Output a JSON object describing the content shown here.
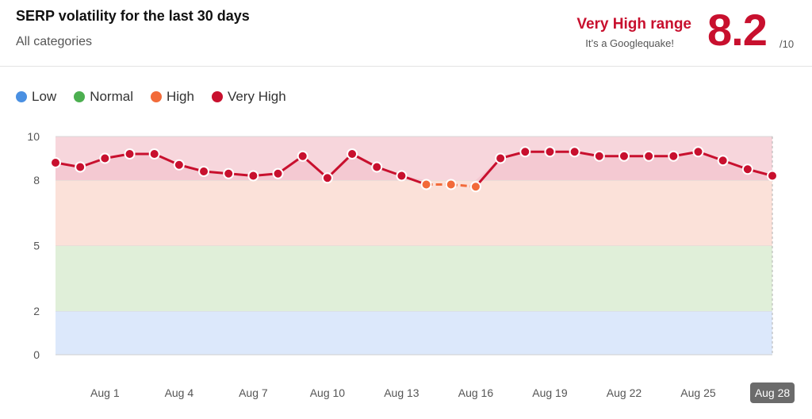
{
  "header": {
    "title": "SERP volatility for the last 30 days",
    "subtitle": "All categories",
    "range_label": "Very High range",
    "range_sub": "It’s a Googlequake!",
    "score": "8.2",
    "score_max": "/10"
  },
  "legend": [
    {
      "label": "Low",
      "color": "#4a90e2"
    },
    {
      "label": "Normal",
      "color": "#4caf50"
    },
    {
      "label": "High",
      "color": "#f26b3a"
    },
    {
      "label": "Very High",
      "color": "#c8102e"
    }
  ],
  "chart_data": {
    "type": "line",
    "x": [
      "Jul 30",
      "Jul 31",
      "Aug 1",
      "Aug 2",
      "Aug 3",
      "Aug 4",
      "Aug 5",
      "Aug 6",
      "Aug 7",
      "Aug 8",
      "Aug 9",
      "Aug 10",
      "Aug 11",
      "Aug 12",
      "Aug 13",
      "Aug 14",
      "Aug 15",
      "Aug 16",
      "Aug 17",
      "Aug 18",
      "Aug 19",
      "Aug 20",
      "Aug 21",
      "Aug 22",
      "Aug 23",
      "Aug 24",
      "Aug 25",
      "Aug 26",
      "Aug 27",
      "Aug 28"
    ],
    "values": [
      8.8,
      8.6,
      9.0,
      9.2,
      9.2,
      8.7,
      8.4,
      8.3,
      8.2,
      8.3,
      9.1,
      8.1,
      9.2,
      8.6,
      8.2,
      7.8,
      7.8,
      7.7,
      9.0,
      9.3,
      9.3,
      9.3,
      9.1,
      9.1,
      9.1,
      9.1,
      9.3,
      8.9,
      8.5,
      8.2
    ],
    "xticks": [
      "Aug 1",
      "Aug 4",
      "Aug 7",
      "Aug 10",
      "Aug 13",
      "Aug 16",
      "Aug 19",
      "Aug 22",
      "Aug 25",
      "Aug 28"
    ],
    "highlighted_tick": "Aug 28",
    "yticks": [
      0,
      2,
      5,
      8,
      10
    ],
    "ylim": [
      0,
      10
    ],
    "bands": [
      {
        "name": "Low",
        "from": 0,
        "to": 2,
        "color": "#dce8fb"
      },
      {
        "name": "Normal",
        "from": 2,
        "to": 5,
        "color": "#e0efd9"
      },
      {
        "name": "High",
        "from": 5,
        "to": 8,
        "color": "#fbe1d9"
      },
      {
        "name": "Very High",
        "from": 8,
        "to": 10,
        "color": "#f7d6dc"
      }
    ],
    "very_high_color": "#c8102e",
    "high_color": "#f26b3a"
  }
}
